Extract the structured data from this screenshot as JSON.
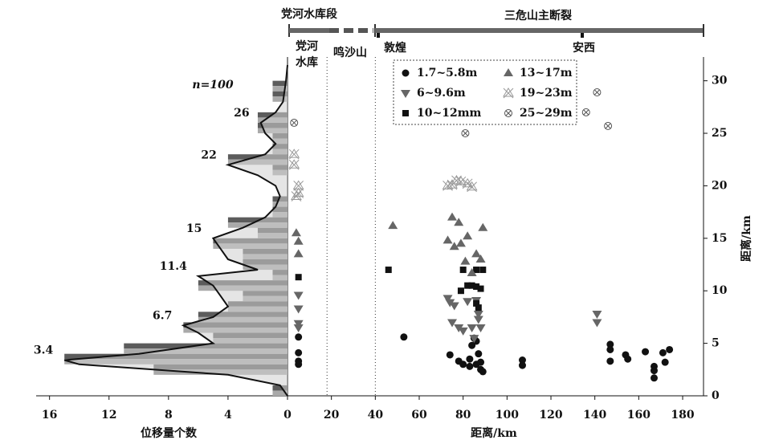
{
  "chart_data": [
    {
      "type": "histogram",
      "xlabel": "位移量个数",
      "n_label": "n=100",
      "xlim": [
        16.9,
        0
      ],
      "xticks": [
        16,
        12,
        8,
        4
      ],
      "bins": [
        0,
        1,
        2,
        3,
        4,
        5,
        6,
        7,
        8,
        9,
        10,
        11,
        12,
        13,
        14,
        15,
        16,
        17,
        18,
        19,
        20,
        21,
        22,
        23,
        24,
        25,
        26,
        27,
        28,
        29,
        30,
        31
      ],
      "counts": [
        1,
        0,
        9,
        15,
        11,
        5,
        7,
        6,
        4,
        3,
        6,
        1,
        3,
        3,
        5,
        2,
        4,
        1,
        1,
        0,
        0,
        1,
        4,
        1,
        1,
        2,
        2,
        0,
        1,
        1,
        0
      ],
      "colors": [
        "#5c5c5c",
        "#a9a9a9"
      ],
      "density": {
        "color": "#cfcfcf",
        "y": [
          0,
          1,
          2,
          3,
          3.4,
          4,
          5,
          6,
          6.7,
          7.5,
          8.5,
          9.5,
          10.5,
          11.4,
          12,
          13,
          14,
          15,
          16,
          17,
          18,
          19,
          20,
          21,
          22,
          23,
          24,
          25,
          26,
          27,
          28,
          30,
          31.5
        ],
        "values": [
          0,
          0.5,
          4,
          14,
          15,
          10,
          5,
          6,
          7,
          5,
          4,
          4.5,
          5,
          6,
          2,
          4,
          4.5,
          5,
          3,
          1.5,
          0.8,
          0.5,
          0.8,
          2,
          4,
          1.5,
          0.8,
          1.5,
          1.8,
          0.8,
          0.3,
          0.1,
          0
        ]
      },
      "peaks": [
        26,
        22,
        15,
        11.4,
        6.7,
        3.4
      ]
    },
    {
      "type": "scatter",
      "xlabel": "距离/km",
      "ylabel": "距离/km",
      "xlim": [
        0,
        189.5
      ],
      "xticks": [
        0,
        20,
        40,
        60,
        80,
        100,
        120,
        140,
        160,
        180
      ],
      "ylim": [
        0,
        31.5
      ],
      "yticks": [
        0,
        5,
        10,
        15,
        20,
        25,
        30
      ],
      "dividers": [
        18,
        40
      ],
      "series": [
        {
          "name": "1.7~5.8m",
          "marker": "circle",
          "color": "#111",
          "x": [
            5,
            5,
            5,
            5,
            53,
            74,
            78,
            80,
            83,
            84,
            85,
            86,
            87,
            88,
            88,
            89,
            83,
            86,
            107,
            107,
            147,
            147,
            147,
            154,
            155,
            163,
            167,
            167,
            167,
            171,
            172,
            174
          ],
          "y": [
            5.6,
            4.1,
            3.3,
            3.0,
            5.6,
            3.9,
            3.3,
            3,
            3.5,
            4.8,
            5.5,
            3.0,
            4,
            2.5,
            3.2,
            2.3,
            2.8,
            5.2,
            3.4,
            2.9,
            4.9,
            4.4,
            3.3,
            3.9,
            3.5,
            4.2,
            2.8,
            2.4,
            1.7,
            4.1,
            3.2,
            4.4
          ]
        },
        {
          "name": "6~9.6m",
          "marker": "down",
          "color": "#666",
          "x": [
            5,
            5,
            5,
            5,
            73,
            74,
            76,
            75,
            78,
            80,
            82,
            84,
            85,
            87,
            87,
            88,
            86,
            141,
            141
          ],
          "y": [
            9.6,
            8.3,
            6.5,
            6.9,
            9.3,
            8.9,
            8.6,
            7,
            6.5,
            6.2,
            9,
            6.5,
            5.5,
            7.8,
            7.3,
            6.5,
            9.1,
            7.8,
            7.0
          ]
        },
        {
          "name": "10~12mm",
          "marker": "square",
          "color": "#111",
          "x": [
            5,
            46,
            80,
            79,
            82,
            84,
            86,
            88,
            86,
            89,
            86,
            87
          ],
          "y": [
            11.3,
            12,
            12,
            10,
            10.5,
            10.5,
            10.4,
            10.2,
            12,
            12,
            8.8,
            8.4
          ]
        },
        {
          "name": "13~17m",
          "marker": "up",
          "color": "#666",
          "x": [
            4,
            5,
            5,
            48,
            73,
            75,
            76,
            78,
            79,
            81,
            82,
            84,
            86,
            88,
            89
          ],
          "y": [
            15.5,
            14.7,
            13.5,
            16.2,
            14.8,
            17,
            14.2,
            16.5,
            14.5,
            12.8,
            15.2,
            11.7,
            13.5,
            13,
            16
          ]
        },
        {
          "name": "19~23m",
          "marker": "xtri",
          "color": "#999",
          "x": [
            3,
            3,
            4,
            5,
            5,
            73,
            75,
            77,
            79,
            82,
            84
          ],
          "y": [
            23,
            22,
            19,
            20,
            19.3,
            20,
            20.1,
            20.5,
            20.4,
            20.2,
            19.9
          ]
        },
        {
          "name": "25~29m",
          "marker": "xcircle",
          "color": "#555",
          "x": [
            3,
            81,
            136,
            141,
            146
          ],
          "y": [
            26,
            25,
            27,
            28.9,
            25.7
          ]
        }
      ]
    }
  ],
  "header": {
    "left_segment": "党河水库段",
    "right_segment": "三危山主断裂",
    "places": [
      "党河",
      "水库",
      "鸣沙山",
      "敦煌",
      "安西"
    ]
  }
}
